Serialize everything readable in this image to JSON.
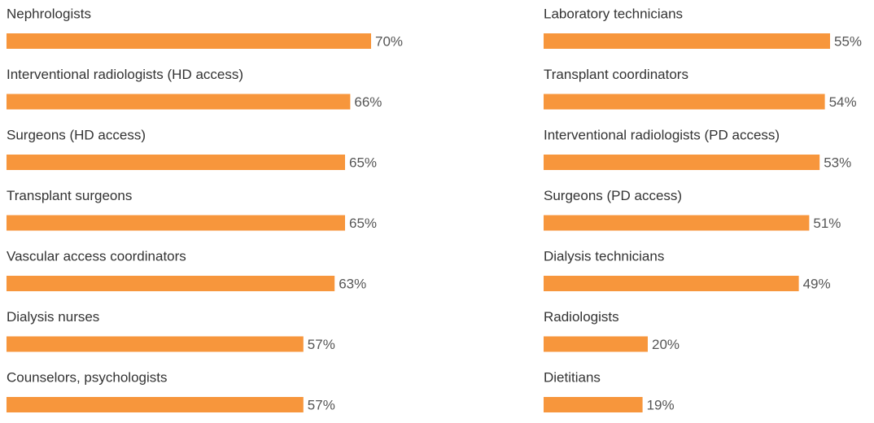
{
  "chart_data": [
    {
      "type": "bar",
      "color": "#f7963c",
      "categories": [
        "Nephrologists",
        "Interventional radiologists (HD access)",
        "Surgeons (HD access)",
        "Transplant surgeons",
        "Vascular access coordinators",
        "Dialysis nurses",
        "Counselors, psychologists"
      ],
      "values": [
        70,
        66,
        65,
        65,
        63,
        57,
        57
      ],
      "value_labels": [
        "70%",
        "66%",
        "65%",
        "65%",
        "63%",
        "57%",
        "57%"
      ]
    },
    {
      "type": "bar",
      "color": "#f7963c",
      "categories": [
        "Laboratory technicians",
        "Transplant coordinators",
        "Interventional radiologists (PD access)",
        "Surgeons (PD access)",
        "Dialysis technicians",
        "Radiologists",
        "Dietitians"
      ],
      "values": [
        55,
        54,
        53,
        51,
        49,
        20,
        19
      ],
      "value_labels": [
        "55%",
        "54%",
        "53%",
        "51%",
        "49%",
        "20%",
        "19%"
      ]
    }
  ]
}
